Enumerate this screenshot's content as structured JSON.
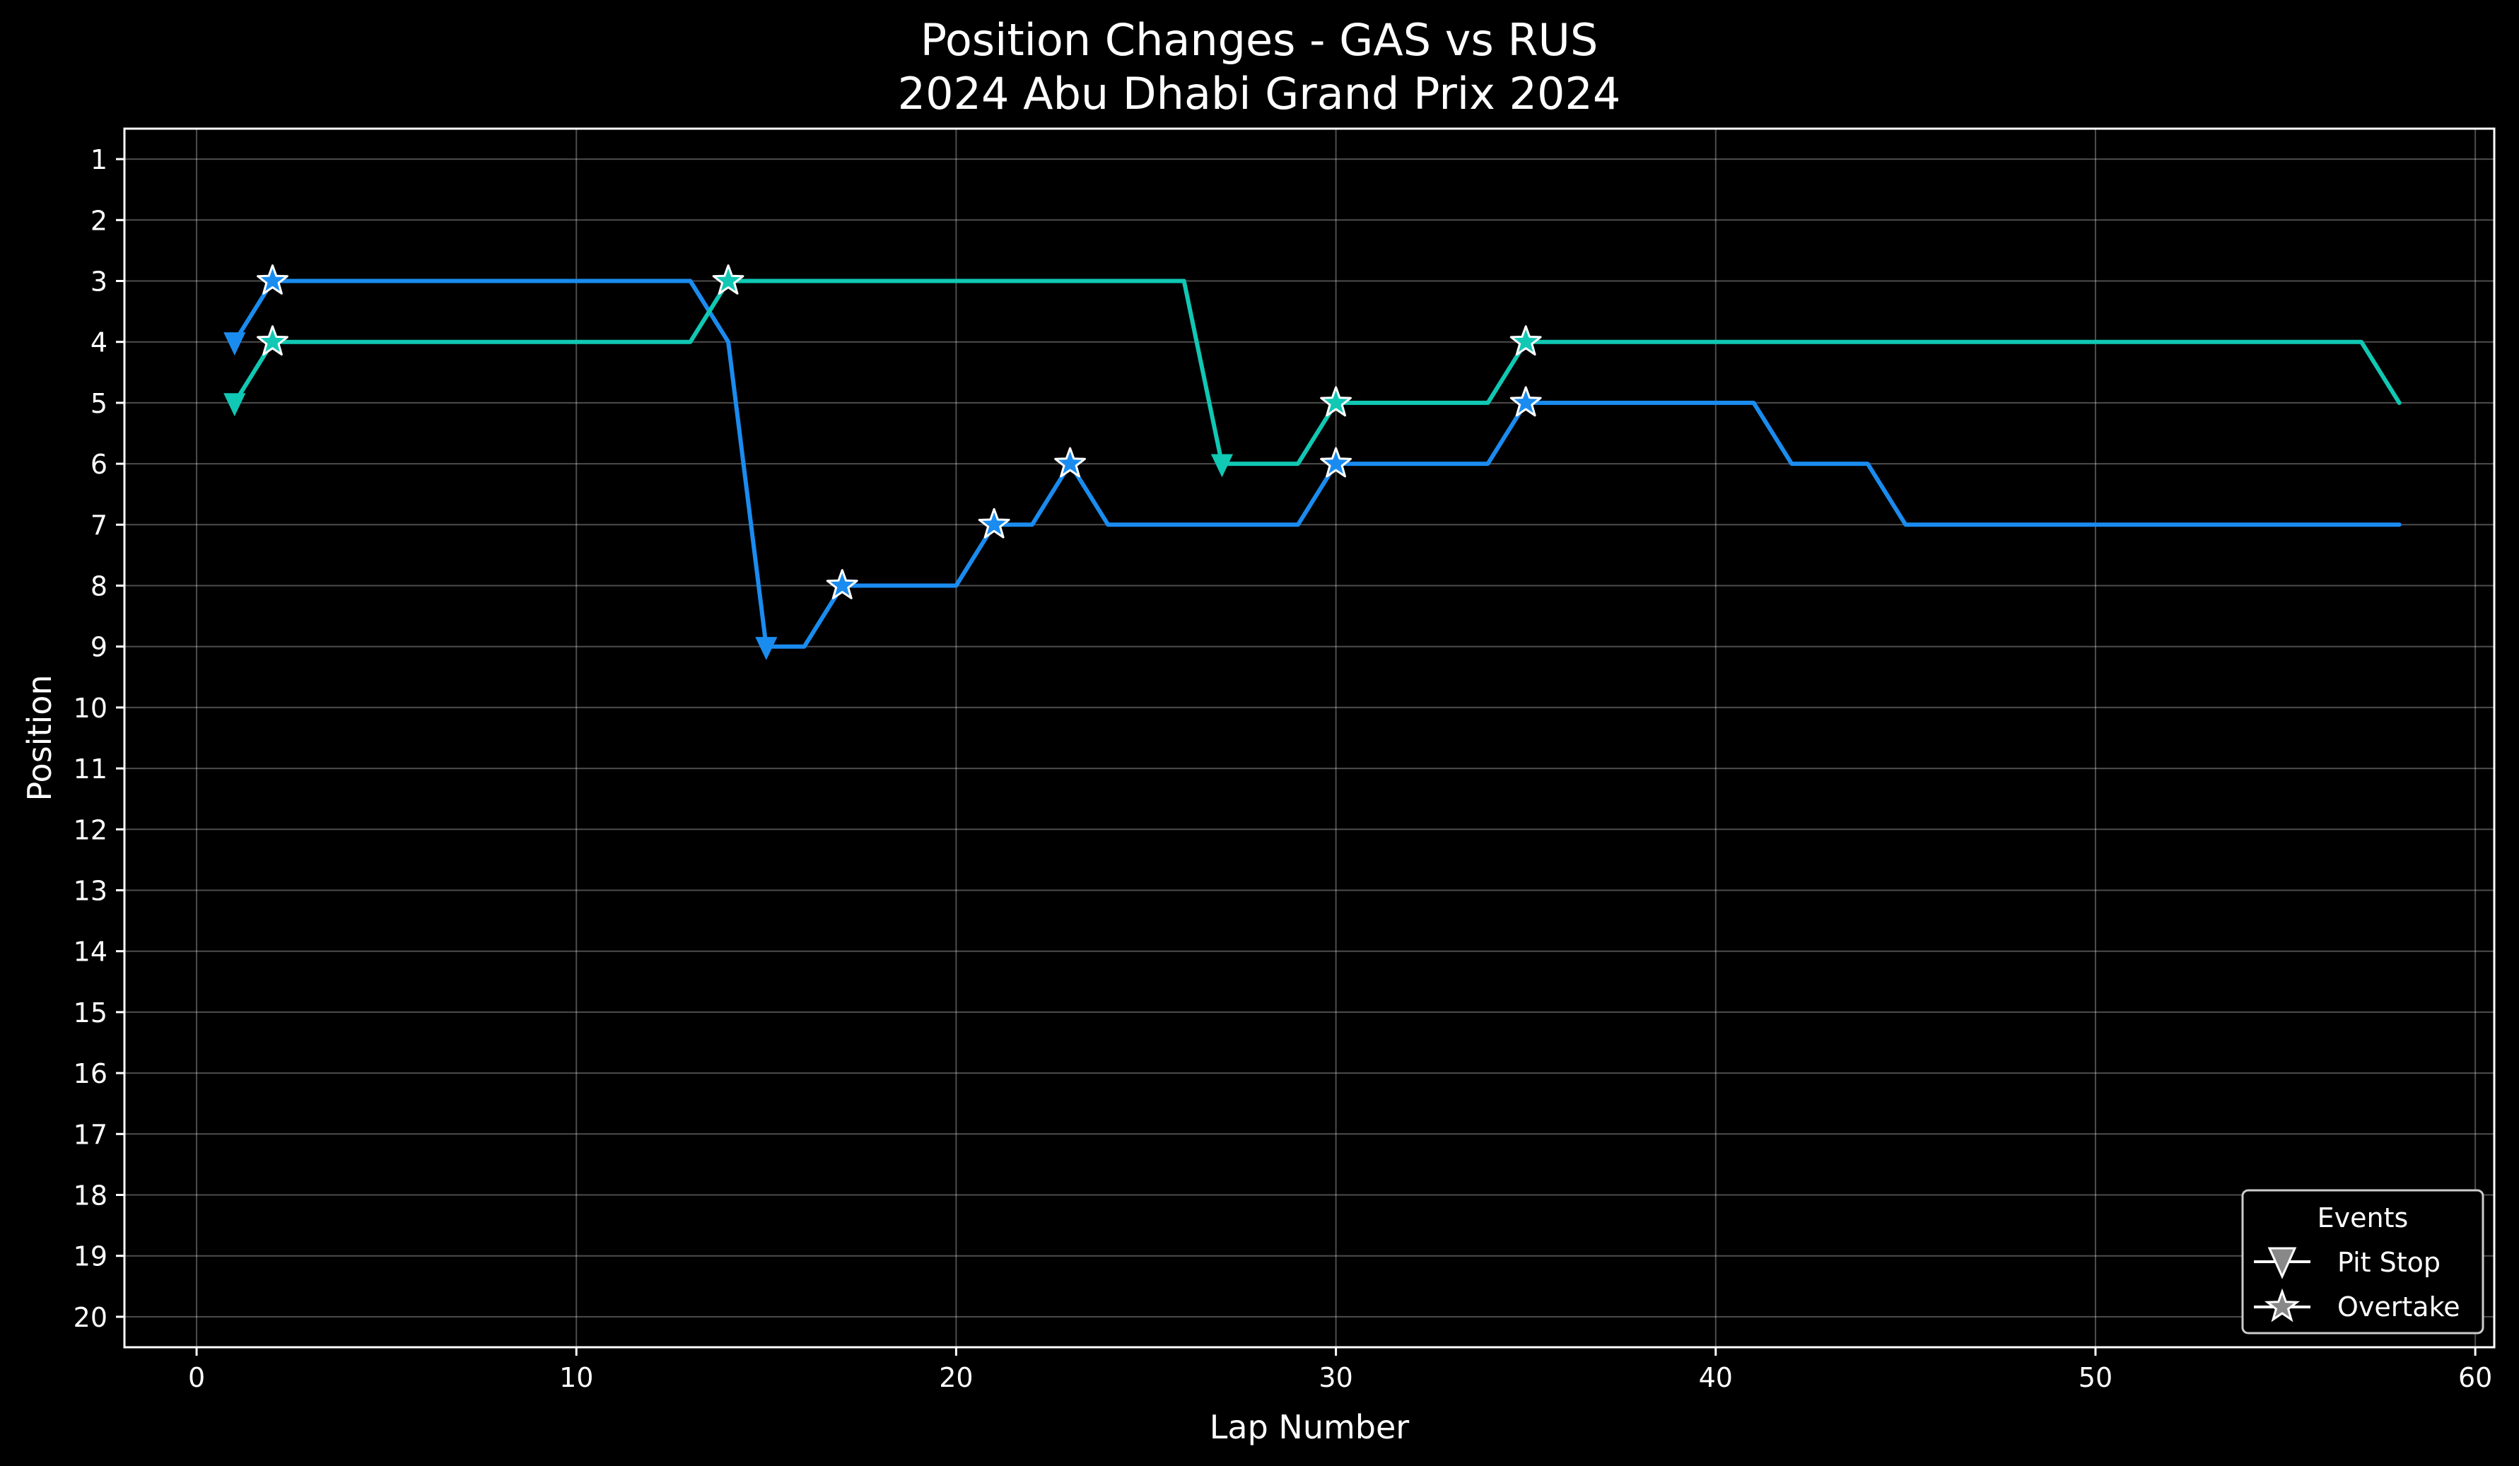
{
  "chart_data": {
    "type": "line",
    "title": "Position Changes - GAS vs RUS",
    "subtitle": "2024 Abu Dhabi Grand Prix 2024",
    "xlabel": "Lap Number",
    "ylabel": "Position",
    "xlim": [
      -1.9,
      60.5
    ],
    "ylim": [
      20.5,
      0.5
    ],
    "y_inverted": true,
    "xticks": [
      0,
      10,
      20,
      30,
      40,
      50,
      60
    ],
    "yticks": [
      1,
      2,
      3,
      4,
      5,
      6,
      7,
      8,
      9,
      10,
      11,
      12,
      13,
      14,
      15,
      16,
      17,
      18,
      19,
      20
    ],
    "grid": true,
    "background": "#000000",
    "series": [
      {
        "color": "#1a8cf0",
        "x": [
          1,
          2,
          3,
          4,
          5,
          6,
          7,
          8,
          9,
          10,
          11,
          12,
          13,
          14,
          15,
          16,
          17,
          18,
          19,
          20,
          21,
          22,
          23,
          24,
          25,
          26,
          27,
          28,
          29,
          30,
          31,
          32,
          33,
          34,
          35,
          36,
          37,
          38,
          39,
          40,
          41,
          42,
          43,
          44,
          45,
          46,
          47,
          48,
          49,
          50,
          51,
          52,
          53,
          54,
          55,
          56,
          57,
          58
        ],
        "y": [
          4,
          3,
          3,
          3,
          3,
          3,
          3,
          3,
          3,
          3,
          3,
          3,
          3,
          4,
          9,
          9,
          8,
          8,
          8,
          8,
          7,
          7,
          6,
          7,
          7,
          7,
          7,
          7,
          7,
          6,
          6,
          6,
          6,
          6,
          5,
          5,
          5,
          5,
          5,
          5,
          5,
          6,
          6,
          6,
          7,
          7,
          7,
          7,
          7,
          7,
          7,
          7,
          7,
          7,
          7,
          7,
          7,
          7
        ],
        "pit_stops": [
          {
            "lap": 1,
            "pos": 4
          },
          {
            "lap": 15,
            "pos": 9
          }
        ],
        "overtakes": [
          {
            "lap": 2,
            "pos": 3
          },
          {
            "lap": 17,
            "pos": 8
          },
          {
            "lap": 21,
            "pos": 7
          },
          {
            "lap": 23,
            "pos": 6
          },
          {
            "lap": 30,
            "pos": 6
          },
          {
            "lap": 35,
            "pos": 5
          }
        ]
      },
      {
        "color": "#10c8b4",
        "x": [
          1,
          2,
          3,
          4,
          5,
          6,
          7,
          8,
          9,
          10,
          11,
          12,
          13,
          14,
          15,
          16,
          17,
          18,
          19,
          20,
          21,
          22,
          23,
          24,
          25,
          26,
          27,
          28,
          29,
          30,
          31,
          32,
          33,
          34,
          35,
          36,
          37,
          38,
          39,
          40,
          41,
          42,
          43,
          44,
          45,
          46,
          47,
          48,
          49,
          50,
          51,
          52,
          53,
          54,
          55,
          56,
          57,
          58
        ],
        "y": [
          5,
          4,
          4,
          4,
          4,
          4,
          4,
          4,
          4,
          4,
          4,
          4,
          4,
          3,
          3,
          3,
          3,
          3,
          3,
          3,
          3,
          3,
          3,
          3,
          3,
          3,
          6,
          6,
          6,
          5,
          5,
          5,
          5,
          5,
          4,
          4,
          4,
          4,
          4,
          4,
          4,
          4,
          4,
          4,
          4,
          4,
          4,
          4,
          4,
          4,
          4,
          4,
          4,
          4,
          4,
          4,
          4,
          5
        ],
        "pit_stops": [
          {
            "lap": 1,
            "pos": 5
          },
          {
            "lap": 27,
            "pos": 6
          }
        ],
        "overtakes": [
          {
            "lap": 2,
            "pos": 4
          },
          {
            "lap": 14,
            "pos": 3
          },
          {
            "lap": 30,
            "pos": 5
          },
          {
            "lap": 35,
            "pos": 4
          }
        ]
      }
    ],
    "legend": {
      "title": "Events",
      "placement": "bottom-right",
      "entries": [
        {
          "label": "Pit Stop",
          "marker": "triangle-down"
        },
        {
          "label": "Overtake",
          "marker": "star"
        }
      ]
    }
  }
}
